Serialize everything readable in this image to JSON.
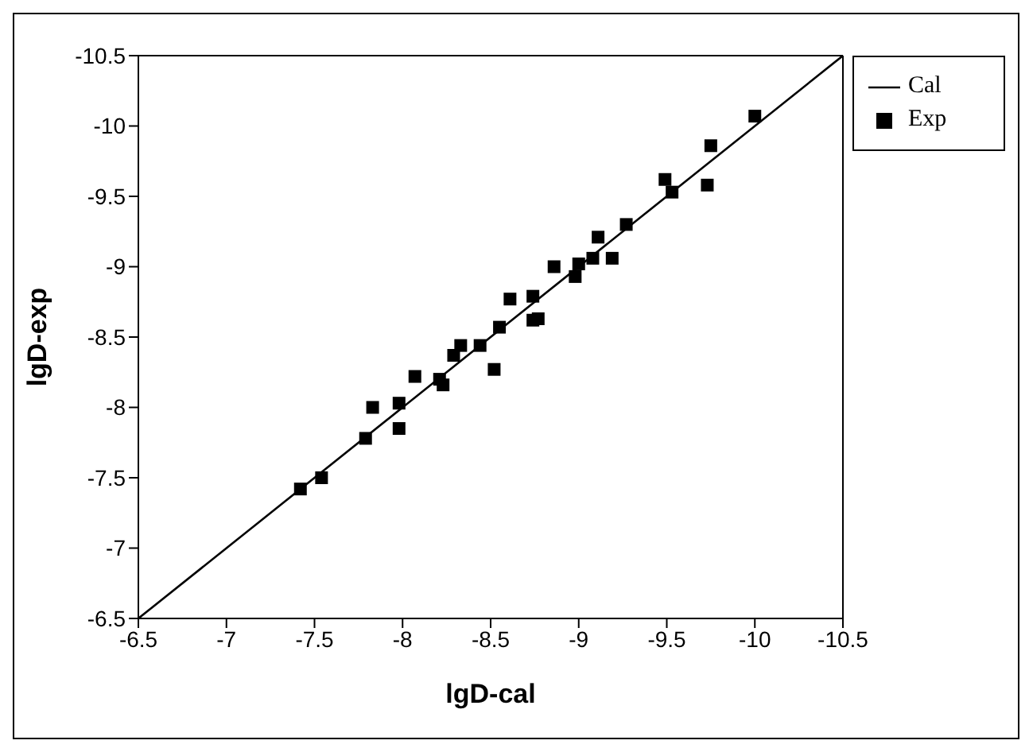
{
  "chart_data": {
    "type": "scatter",
    "xlabel": "lgD-cal",
    "ylabel": "lgD-exp",
    "xlim": [
      -6.5,
      -10.5
    ],
    "ylim": [
      -6.5,
      -10.5
    ],
    "xticks": [
      -6.5,
      -7,
      -7.5,
      -8,
      -8.5,
      -9,
      -9.5,
      -10,
      -10.5
    ],
    "yticks": [
      -6.5,
      -7,
      -7.5,
      -8,
      -8.5,
      -9,
      -9.5,
      -10,
      -10.5
    ],
    "grid": false,
    "legend": "top right",
    "series": [
      {
        "name": "Cal",
        "type": "line",
        "marker": "none",
        "line_style": "solid",
        "color": "#000000",
        "x": [
          -6.5,
          -10.5
        ],
        "values": [
          -6.5,
          -10.5
        ]
      },
      {
        "name": "Exp",
        "marker": "square",
        "color": "#000000",
        "x": [
          -7.42,
          -7.54,
          -7.79,
          -7.83,
          -7.98,
          -7.98,
          -8.07,
          -8.21,
          -8.23,
          -8.29,
          -8.33,
          -8.44,
          -8.52,
          -8.55,
          -8.61,
          -8.74,
          -8.74,
          -8.77,
          -8.86,
          -8.98,
          -9.0,
          -9.08,
          -9.11,
          -9.19,
          -9.27,
          -9.49,
          -9.53,
          -9.73,
          -9.75,
          -10.0
        ],
        "values": [
          -7.42,
          -7.5,
          -7.78,
          -8.0,
          -7.85,
          -8.03,
          -8.22,
          -8.2,
          -8.16,
          -8.37,
          -8.44,
          -8.44,
          -8.27,
          -8.57,
          -8.77,
          -8.79,
          -8.62,
          -8.63,
          -9.0,
          -8.93,
          -9.02,
          -9.06,
          -9.21,
          -9.06,
          -9.3,
          -9.62,
          -9.53,
          -9.58,
          -9.86,
          -10.07
        ]
      }
    ]
  }
}
